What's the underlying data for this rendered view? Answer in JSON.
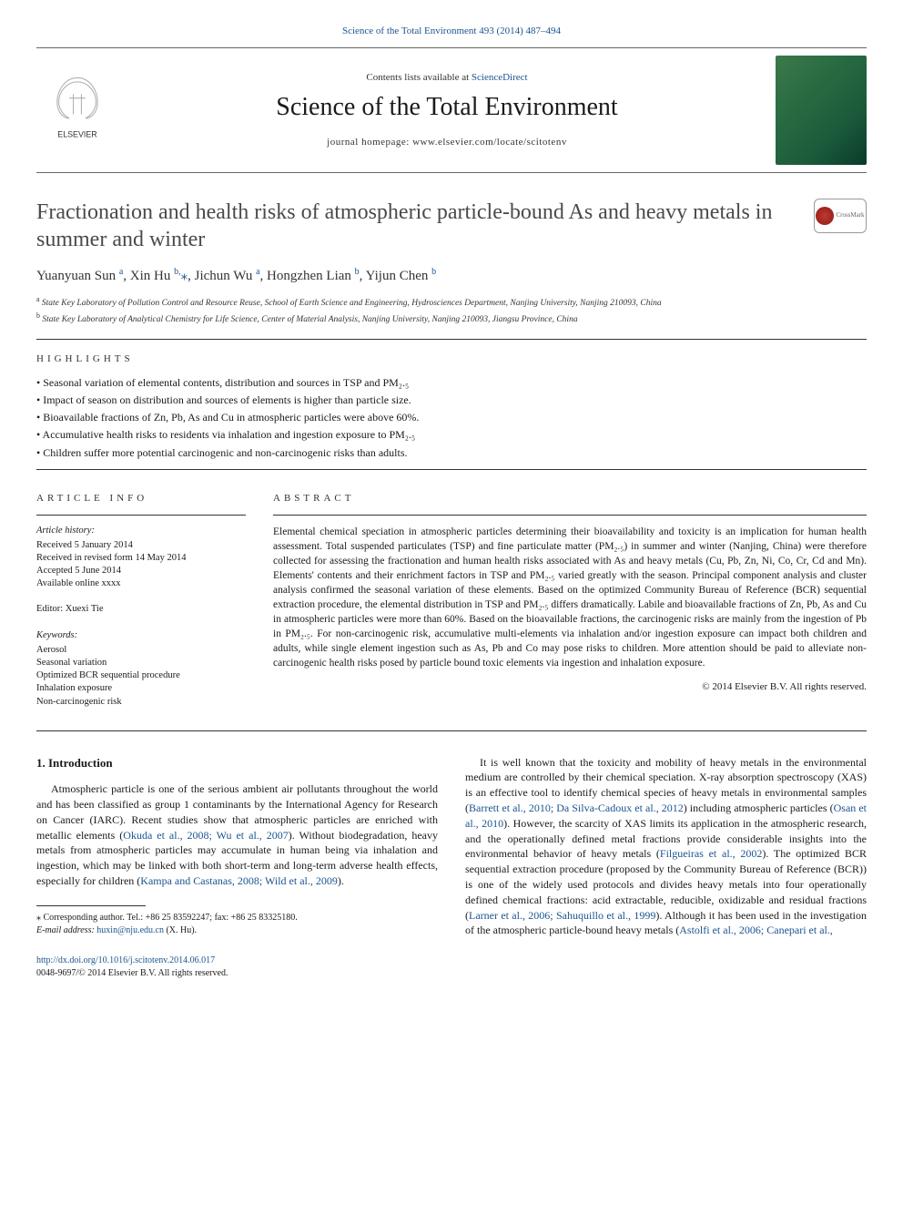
{
  "top_link": {
    "text": "Science of the Total Environment 493 (2014) 487–494",
    "color": "#1a5490",
    "fontsize": 11
  },
  "header": {
    "available_prefix": "Contents lists available at ",
    "available_link": "ScienceDirect",
    "journal": "Science of the Total Environment",
    "homepage_prefix": "journal homepage: ",
    "homepage": "www.elsevier.com/locate/scitotenv",
    "left_logo_fill": "#b0b0b0",
    "left_logo_text": "ELSEVIER",
    "right_logo_gradient": [
      "#3a7a4a",
      "#1a5a3a",
      "#0a3a2a"
    ]
  },
  "article": {
    "title": "Fractionation and health risks of atmospheric particle-bound As and heavy metals in summer and winter",
    "title_color": "#4a4a4a",
    "title_fontsize": 24,
    "authors_html": "Yuanyuan Sun <sup>a</sup>, Xin Hu <sup>b,</sup><span class='star'>⁎</span>, Jichun Wu <sup>a</sup>, Hongzhen Lian <sup>b</sup>, Yijun Chen <sup>b</sup>",
    "affiliations": [
      {
        "sup": "a",
        "text": "State Key Laboratory of Pollution Control and Resource Reuse, School of Earth Science and Engineering, Hydrosciences Department, Nanjing University, Nanjing 210093, China"
      },
      {
        "sup": "b",
        "text": "State Key Laboratory of Analytical Chemistry for Life Science, Center of Material Analysis, Nanjing University, Nanjing 210093, Jiangsu Province, China"
      }
    ],
    "crossmark_label": "CrossMark"
  },
  "highlights": {
    "label": "HIGHLIGHTS",
    "items": [
      "Seasonal variation of elemental contents, distribution and sources in TSP and PM₂.₅",
      "Impact of season on distribution and sources of elements is higher than particle size.",
      "Bioavailable fractions of Zn, Pb, As and Cu in atmospheric particles were above 60%.",
      "Accumulative health risks to residents via inhalation and ingestion exposure to PM₂.₅",
      "Children suffer more potential carcinogenic and non-carcinogenic risks than adults."
    ]
  },
  "article_info": {
    "label": "ARTICLE INFO",
    "history_hdr": "Article history:",
    "history": [
      "Received 5 January 2014",
      "Received in revised form 14 May 2014",
      "Accepted 5 June 2014",
      "Available online xxxx"
    ],
    "editor_label": "Editor:",
    "editor": "Xuexi Tie",
    "keywords_hdr": "Keywords:",
    "keywords": [
      "Aerosol",
      "Seasonal variation",
      "Optimized BCR sequential procedure",
      "Inhalation exposure",
      "Non-carcinogenic risk"
    ]
  },
  "abstract": {
    "label": "ABSTRACT",
    "text": "Elemental chemical speciation in atmospheric particles determining their bioavailability and toxicity is an implication for human health assessment. Total suspended particulates (TSP) and fine particulate matter (PM₂.₅) in summer and winter (Nanjing, China) were therefore collected for assessing the fractionation and human health risks associated with As and heavy metals (Cu, Pb, Zn, Ni, Co, Cr, Cd and Mn). Elements' contents and their enrichment factors in TSP and PM₂.₅ varied greatly with the season. Principal component analysis and cluster analysis confirmed the seasonal variation of these elements. Based on the optimized Community Bureau of Reference (BCR) sequential extraction procedure, the elemental distribution in TSP and PM₂.₅ differs dramatically. Labile and bioavailable fractions of Zn, Pb, As and Cu in atmospheric particles were more than 60%. Based on the bioavailable fractions, the carcinogenic risks are mainly from the ingestion of Pb in PM₂.₅. For non-carcinogenic risk, accumulative multi-elements via inhalation and/or ingestion exposure can impact both children and adults, while single element ingestion such as As, Pb and Co may pose risks to children. More attention should be paid to alleviate non-carcinogenic health risks posed by particle bound toxic elements via ingestion and inhalation exposure.",
    "copyright": "© 2014 Elsevier B.V. All rights reserved."
  },
  "intro": {
    "heading": "1. Introduction",
    "col1_para": "Atmospheric particle is one of the serious ambient air pollutants throughout the world and has been classified as group 1 contaminants by the International Agency for Research on Cancer (IARC). Recent studies show that atmospheric particles are enriched with metallic elements (",
    "col1_cite1": "Okuda et al., 2008; Wu et al., 2007",
    "col1_mid": "). Without biodegradation, heavy metals from atmospheric particles may accumulate in human being via inhalation and ingestion, which may be linked with both short-term and long-term adverse health effects, especially for children (",
    "col1_cite2": "Kampa and Castanas, 2008; Wild et al., 2009",
    "col1_end": ").",
    "col2_para": "It is well known that the toxicity and mobility of heavy metals in the environmental medium are controlled by their chemical speciation. X-ray absorption spectroscopy (XAS) is an effective tool to identify chemical species of heavy metals in environmental samples (",
    "col2_cite1": "Barrett et al., 2010; Da Silva-Cadoux et al., 2012",
    "col2_mid1": ") including atmospheric particles (",
    "col2_cite2": "Osan et al., 2010",
    "col2_mid2": "). However, the scarcity of XAS limits its application in the atmospheric research, and the operationally defined metal fractions provide considerable insights into the environmental behavior of heavy metals (",
    "col2_cite3": "Filgueiras et al., 2002",
    "col2_mid3": "). The optimized BCR sequential extraction procedure (proposed by the Community Bureau of Reference (BCR)) is one of the widely used protocols and divides heavy metals into four operationally defined chemical fractions: acid extractable, reducible, oxidizable and residual fractions (",
    "col2_cite4": "Larner et al., 2006; Sahuquillo et al., 1999",
    "col2_mid4": "). Although it has been used in the investigation of the atmospheric particle-bound heavy metals (",
    "col2_cite5": "Astolfi et al., 2006; Canepari et al.,",
    "col2_end": ""
  },
  "footnote": {
    "corr_label": "⁎ Corresponding author. Tel.: +86 25 83592247; fax: +86 25 83325180.",
    "email_label": "E-mail address: ",
    "email": "huxin@nju.edu.cn",
    "email_suffix": " (X. Hu)."
  },
  "footer": {
    "doi": "http://dx.doi.org/10.1016/j.scitotenv.2014.06.017",
    "issn_line": "0048-9697/© 2014 Elsevier B.V. All rights reserved."
  },
  "colors": {
    "link": "#1a5490",
    "text": "#1a1a1a",
    "title_gray": "#4a4a4a",
    "rule": "#333333"
  }
}
